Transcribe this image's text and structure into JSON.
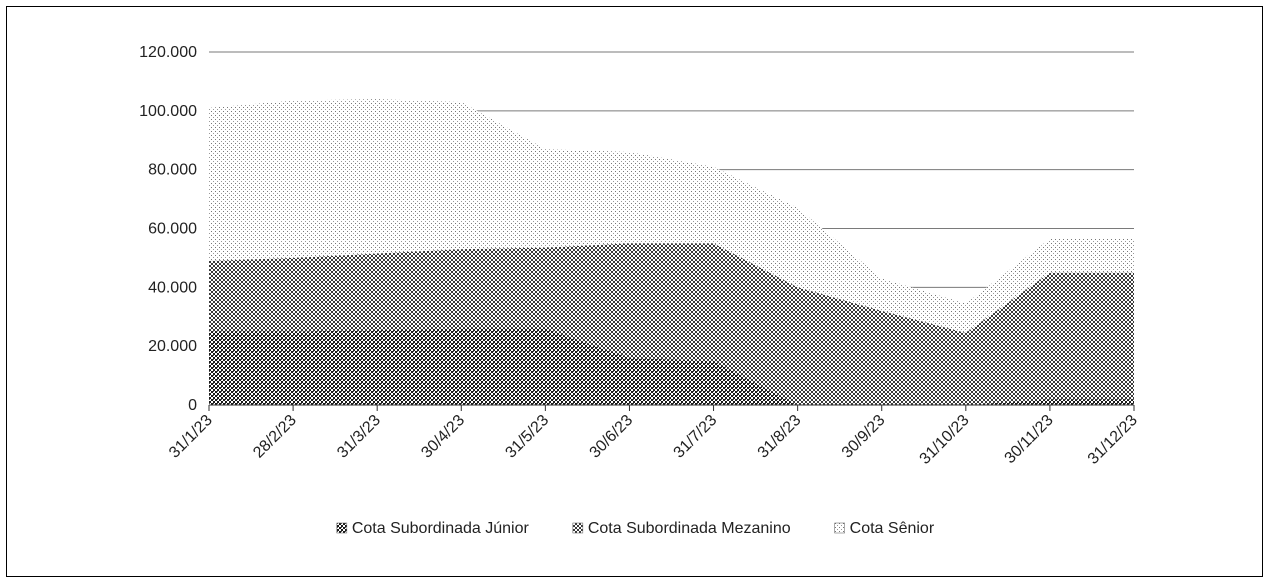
{
  "chart_data": {
    "type": "area",
    "stacked": true,
    "x": [
      "31/1/23",
      "28/2/23",
      "31/3/23",
      "30/4/23",
      "31/5/23",
      "30/6/23",
      "31/7/23",
      "31/8/23",
      "30/9/23",
      "31/10/23",
      "30/11/23",
      "31/12/23"
    ],
    "series": [
      {
        "name": "Cota Subordinada Júnior",
        "values": [
          25000,
          25000,
          25500,
          26000,
          26000,
          16000,
          15000,
          0,
          0,
          0,
          2000,
          2000
        ],
        "pattern": "checker-dense"
      },
      {
        "name": "Cota Subordinada Mezanino",
        "values": [
          24000,
          25000,
          26000,
          27000,
          27500,
          39000,
          40000,
          40000,
          32000,
          24500,
          43000,
          43000
        ],
        "pattern": "checker"
      },
      {
        "name": "Cota Sênior",
        "values": [
          52000,
          53500,
          52500,
          50000,
          33500,
          31000,
          26000,
          27000,
          11000,
          10000,
          11500,
          11500
        ],
        "pattern": "dots"
      }
    ],
    "ylim": [
      0,
      120000
    ],
    "yticks": [
      {
        "value": 0,
        "label": "0"
      },
      {
        "value": 20000,
        "label": "20.000"
      },
      {
        "value": 40000,
        "label": "40.000"
      },
      {
        "value": 60000,
        "label": "60.000"
      },
      {
        "value": 80000,
        "label": "80.000"
      },
      {
        "value": 100000,
        "label": "100.000"
      },
      {
        "value": 120000,
        "label": "120.000"
      }
    ],
    "grid": true,
    "legend_position": "bottom"
  }
}
